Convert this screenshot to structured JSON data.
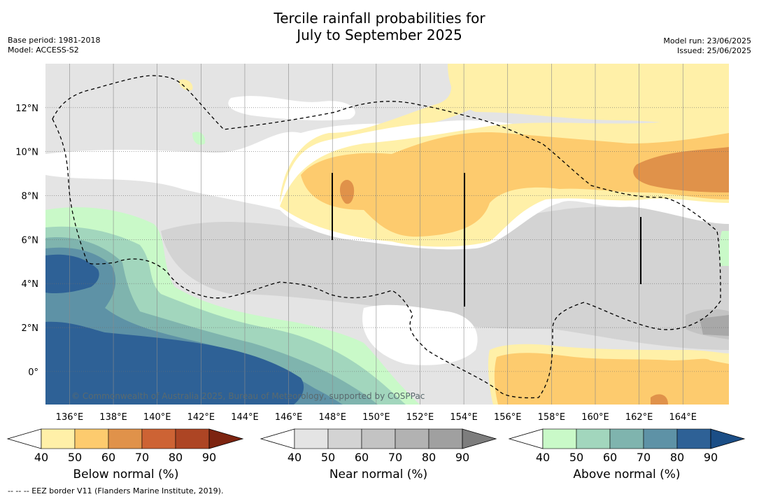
{
  "title_line1": "Tercile rainfall probabilities for",
  "title_line2": "July to September 2025",
  "base_period": "Base period: 1981-2018",
  "model": "Model: ACCESS-S2",
  "model_run": "Model run: 23/06/2025",
  "issued": "Issued: 25/06/2025",
  "copyright": "© Commonwealth of Australia 2025, Bureau of Meteorology, supported by COSPPac",
  "footnote": "--  --  -- EEZ border V11 (Flanders Marine Institute, 2019).",
  "map": {
    "lon_range": [
      134.9,
      166.1
    ],
    "lat_range": [
      -1.5,
      14.0
    ],
    "lon_ticks": [
      "136°E",
      "138°E",
      "140°E",
      "142°E",
      "144°E",
      "146°E",
      "148°E",
      "150°E",
      "152°E",
      "154°E",
      "156°E",
      "158°E",
      "160°E",
      "162°E",
      "164°E"
    ],
    "lat_ticks": [
      "0°",
      "2°N",
      "4°N",
      "6°N",
      "8°N",
      "10°N",
      "12°N"
    ]
  },
  "colorbars": [
    {
      "label": "Below normal (%)",
      "ticks": [
        "40",
        "50",
        "60",
        "70",
        "80",
        "90"
      ],
      "colors": [
        "#fff0a8",
        "#fdcb6e",
        "#e0924a",
        "#cd6334",
        "#ad4524",
        "#7d2410"
      ]
    },
    {
      "label": "Near normal (%)",
      "ticks": [
        "40",
        "50",
        "60",
        "70",
        "80",
        "90"
      ],
      "colors": [
        "#e4e4e4",
        "#d3d3d3",
        "#c3c3c3",
        "#b2b2b2",
        "#a0a0a0",
        "#7d7d7d"
      ]
    },
    {
      "label": "Above normal (%)",
      "ticks": [
        "40",
        "50",
        "60",
        "70",
        "80",
        "90"
      ],
      "colors": [
        "#c9f9c8",
        "#a2d6bd",
        "#7fb4ae",
        "#5e92a6",
        "#2e6196",
        "#1b4e86"
      ]
    }
  ]
}
